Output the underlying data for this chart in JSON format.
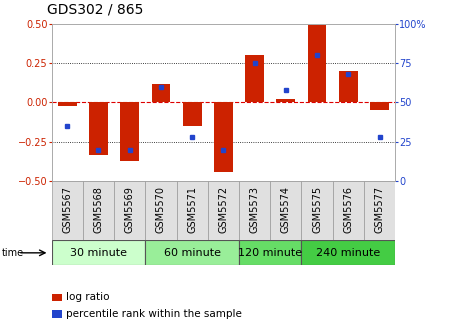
{
  "title": "GDS302 / 865",
  "samples": [
    "GSM5567",
    "GSM5568",
    "GSM5569",
    "GSM5570",
    "GSM5571",
    "GSM5572",
    "GSM5573",
    "GSM5574",
    "GSM5575",
    "GSM5576",
    "GSM5577"
  ],
  "log_ratio": [
    -0.02,
    -0.33,
    -0.37,
    0.12,
    -0.15,
    -0.44,
    0.3,
    0.02,
    0.49,
    0.2,
    -0.05
  ],
  "percentile_rank": [
    35,
    20,
    20,
    60,
    28,
    20,
    75,
    58,
    80,
    68,
    28
  ],
  "groups": [
    {
      "label": "30 minute",
      "start": 0,
      "end": 3,
      "color": "#ccffcc"
    },
    {
      "label": "60 minute",
      "start": 3,
      "end": 6,
      "color": "#99ee99"
    },
    {
      "label": "120 minute",
      "start": 6,
      "end": 8,
      "color": "#66dd66"
    },
    {
      "label": "240 minute",
      "start": 8,
      "end": 11,
      "color": "#44cc44"
    }
  ],
  "bar_color": "#cc2200",
  "dot_color": "#2244cc",
  "ylim_left": [
    -0.5,
    0.5
  ],
  "ylim_right": [
    0,
    100
  ],
  "yticks_left": [
    -0.5,
    -0.25,
    0,
    0.25,
    0.5
  ],
  "yticks_right": [
    0,
    25,
    50,
    75,
    100
  ],
  "hlines_dotted": [
    -0.25,
    0.25
  ],
  "zero_color": "#dd0000",
  "title_fontsize": 10,
  "tick_fontsize": 7,
  "label_fontsize": 7,
  "group_fontsize": 8
}
